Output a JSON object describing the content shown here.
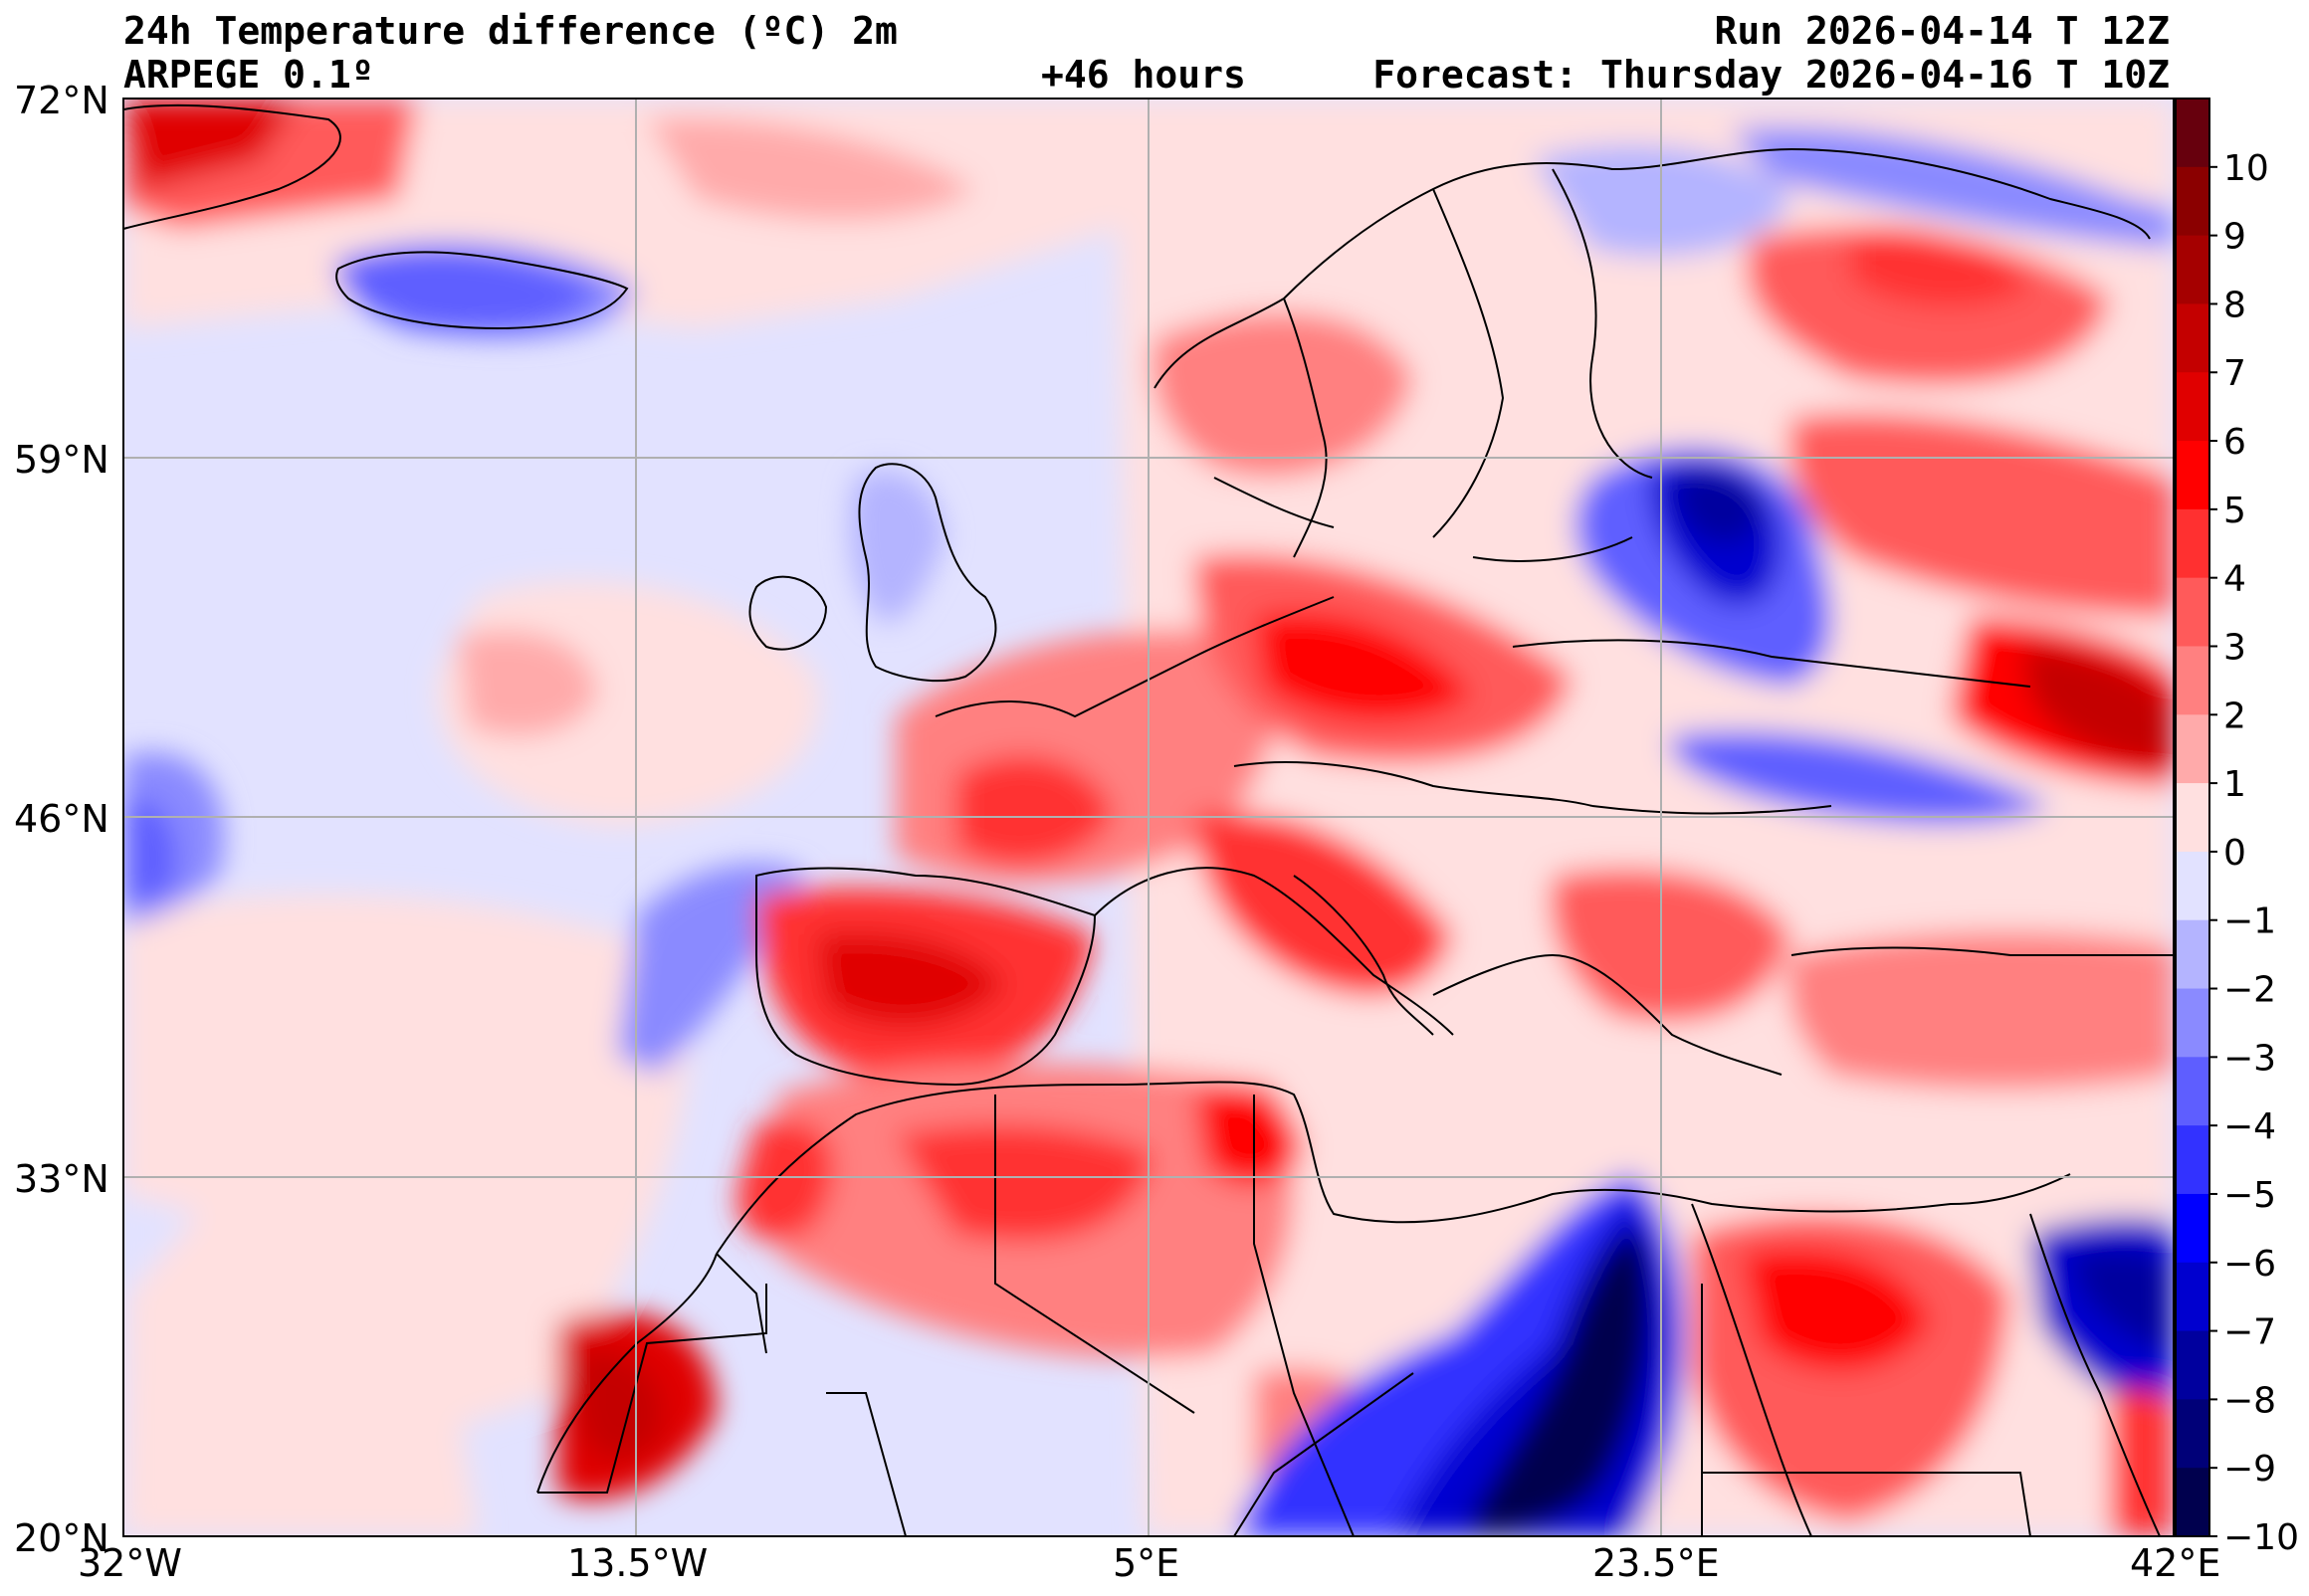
{
  "header": {
    "title": "24h Temperature difference (ºC) 2m",
    "model": "ARPEGE 0.1º",
    "lead_time": "+46 hours",
    "run": "Run 2026-04-14 T 12Z",
    "forecast": "Forecast: Thursday 2026-04-16 T 10Z"
  },
  "map": {
    "lat_ticks": [
      "72°N",
      "59°N",
      "46°N",
      "33°N",
      "20°N"
    ],
    "lon_ticks": [
      "32°W",
      "13.5°W",
      "5°E",
      "23.5°E",
      "42°E"
    ],
    "extent": {
      "lon": [
        -32,
        42
      ],
      "lat": [
        20,
        72
      ]
    },
    "grid": true
  },
  "colorbar": {
    "levels": [
      "10",
      "9",
      "8",
      "7",
      "6",
      "5",
      "4",
      "3",
      "2",
      "1",
      "0",
      "−1",
      "−2",
      "−3",
      "−4",
      "−5",
      "−6",
      "−7",
      "−8",
      "−9",
      "−10"
    ],
    "colors_top_to_bottom": [
      "#67000d",
      "#8b0000",
      "#a50000",
      "#c40000",
      "#e00000",
      "#ff0000",
      "#ff3030",
      "#ff5a5a",
      "#ff8080",
      "#ffaaaa",
      "#ffe0e0",
      "#e2e2ff",
      "#b4b4ff",
      "#8a8aff",
      "#5e5eff",
      "#3232ff",
      "#0000ff",
      "#0000cf",
      "#00009e",
      "#000078",
      "#00004e"
    ]
  },
  "colors": {
    "warm": "#ff3a3a",
    "cold": "#1a1aff",
    "neutral_warm": "#ffe0e0",
    "neutral_cold": "#e2e2ff"
  }
}
